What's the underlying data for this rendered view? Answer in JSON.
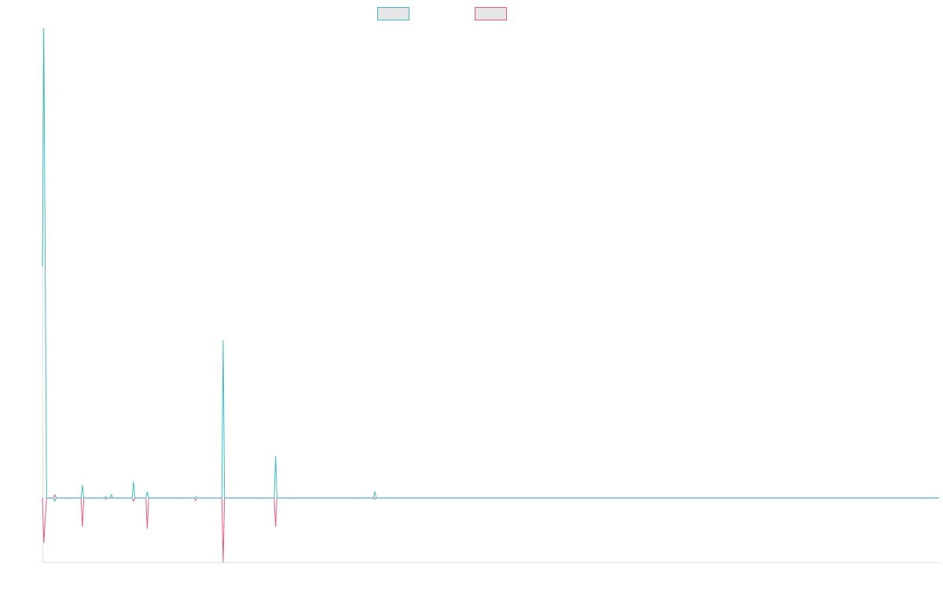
{
  "chart_data": {
    "type": "line",
    "title": "",
    "xlabel": "",
    "ylabel": "",
    "axes_visible": false,
    "grid": false,
    "legend": {
      "placement": "top-center",
      "labels_visible": false
    },
    "colors": {
      "series_a": "#3dbdc2",
      "series_b": "#ea5a84",
      "axis": "#e2e2e2",
      "legend_fill": "#e6e6e6"
    },
    "series_count": 2,
    "x_domain": [
      0,
      650
    ],
    "y_domain": [
      -1.0,
      7.3
    ],
    "series": [
      {
        "color": "#3dbdc2",
        "points": [
          [
            0,
            3.6
          ],
          [
            1,
            7.3
          ],
          [
            3,
            0
          ],
          [
            8,
            0
          ],
          [
            9,
            -0.05
          ],
          [
            10,
            0
          ],
          [
            28,
            0
          ],
          [
            29,
            0.2
          ],
          [
            30,
            0
          ],
          [
            45,
            0
          ],
          [
            46,
            0.02
          ],
          [
            47,
            0
          ],
          [
            49,
            0
          ],
          [
            50,
            0.05
          ],
          [
            51,
            0
          ],
          [
            65,
            0
          ],
          [
            66,
            0.25
          ],
          [
            67,
            0
          ],
          [
            75,
            0
          ],
          [
            76,
            0.1
          ],
          [
            77,
            0
          ],
          [
            110,
            0
          ],
          [
            111,
            0.02
          ],
          [
            112,
            0
          ],
          [
            130,
            0
          ],
          [
            131,
            2.45
          ],
          [
            132,
            0
          ],
          [
            168,
            0
          ],
          [
            169,
            0.65
          ],
          [
            170,
            0
          ],
          [
            240,
            0
          ],
          [
            241,
            0.1
          ],
          [
            242,
            0
          ],
          [
            650,
            0
          ]
        ]
      },
      {
        "color": "#ea5a84",
        "points": [
          [
            0,
            0
          ],
          [
            1,
            -0.7
          ],
          [
            3,
            0
          ],
          [
            8,
            0
          ],
          [
            9,
            0.05
          ],
          [
            10,
            0
          ],
          [
            28,
            0
          ],
          [
            29,
            -0.45
          ],
          [
            30,
            0
          ],
          [
            45,
            0
          ],
          [
            46,
            -0.02
          ],
          [
            47,
            0
          ],
          [
            49,
            0
          ],
          [
            50,
            0
          ],
          [
            51,
            0
          ],
          [
            65,
            0
          ],
          [
            66,
            -0.05
          ],
          [
            67,
            0
          ],
          [
            75,
            0
          ],
          [
            76,
            -0.48
          ],
          [
            77,
            0
          ],
          [
            110,
            0
          ],
          [
            111,
            -0.04
          ],
          [
            112,
            0
          ],
          [
            130,
            0
          ],
          [
            131,
            -1.0
          ],
          [
            132,
            0
          ],
          [
            168,
            0
          ],
          [
            169,
            -0.45
          ],
          [
            170,
            0
          ],
          [
            240,
            0
          ],
          [
            241,
            -0.02
          ],
          [
            242,
            0
          ],
          [
            650,
            0
          ]
        ]
      }
    ]
  }
}
